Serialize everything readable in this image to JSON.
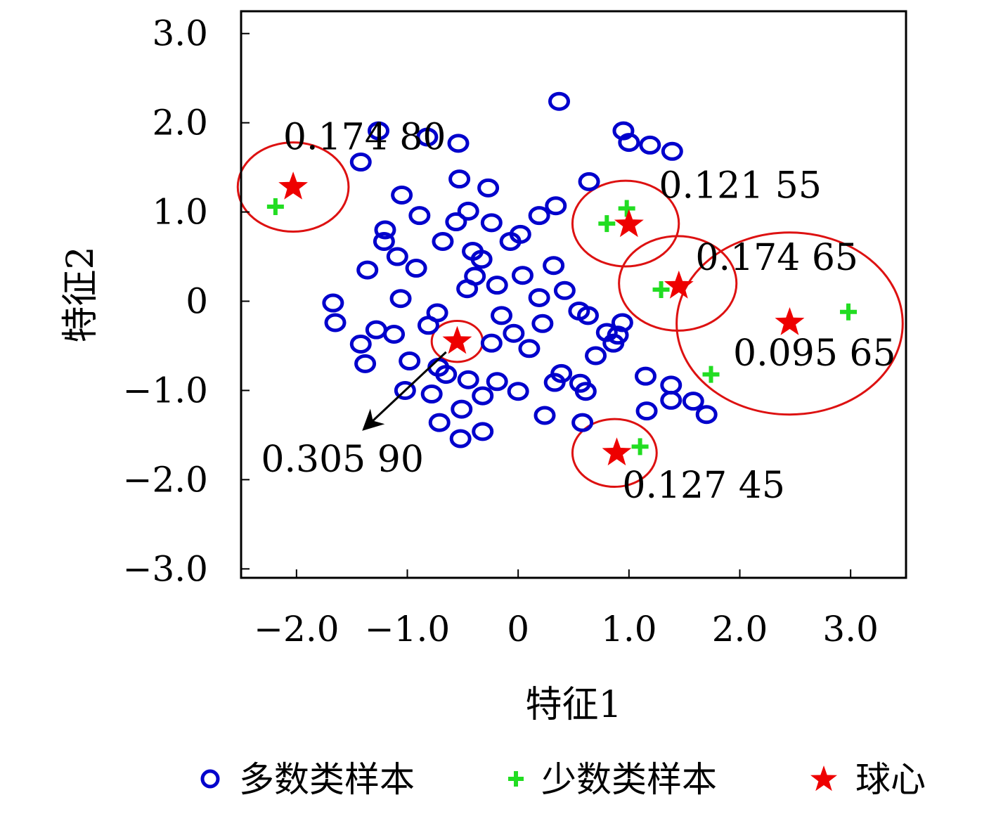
{
  "chart_data": {
    "type": "scatter",
    "xlabel": "特征1",
    "ylabel": "特征2",
    "xlim": [
      -2.5,
      3.5
    ],
    "ylim": [
      -3.1,
      3.25
    ],
    "xticks": [
      {
        "value": -2,
        "label": "−2.0"
      },
      {
        "value": -1,
        "label": "−1.0"
      },
      {
        "value": 0,
        "label": "0"
      },
      {
        "value": 1,
        "label": "1.0"
      },
      {
        "value": 2,
        "label": "2.0"
      },
      {
        "value": 3,
        "label": "3.0"
      }
    ],
    "yticks": [
      {
        "value": 3,
        "label": "3.0"
      },
      {
        "value": 2,
        "label": "2.0"
      },
      {
        "value": 1,
        "label": "1.0"
      },
      {
        "value": 0,
        "label": "0"
      },
      {
        "value": -1,
        "label": "−1.0"
      },
      {
        "value": -2,
        "label": "−2.0"
      },
      {
        "value": -3,
        "label": "−3.0"
      }
    ],
    "grid": false,
    "legend_position": "bottom",
    "colors": {
      "majority": "#0000cc",
      "minority": "#22dd22",
      "center": "#ee0000",
      "circle": "#dd1111"
    },
    "majority": {
      "name": "多数类样本",
      "points": [
        [
          0.37,
          2.24
        ],
        [
          0.95,
          1.91
        ],
        [
          1.0,
          1.78
        ],
        [
          1.19,
          1.75
        ],
        [
          1.39,
          1.68
        ],
        [
          0.64,
          1.34
        ],
        [
          -1.26,
          1.91
        ],
        [
          -0.82,
          1.84
        ],
        [
          -0.54,
          1.77
        ],
        [
          -1.42,
          1.56
        ],
        [
          -0.53,
          1.37
        ],
        [
          -0.27,
          1.27
        ],
        [
          -1.05,
          1.19
        ],
        [
          -0.89,
          0.96
        ],
        [
          -0.45,
          1.01
        ],
        [
          -0.56,
          0.89
        ],
        [
          -0.24,
          0.88
        ],
        [
          0.34,
          1.07
        ],
        [
          0.19,
          0.96
        ],
        [
          0.02,
          0.75
        ],
        [
          -1.2,
          0.8
        ],
        [
          -1.21,
          0.67
        ],
        [
          -0.68,
          0.67
        ],
        [
          -0.07,
          0.67
        ],
        [
          -1.09,
          0.5
        ],
        [
          -0.92,
          0.37
        ],
        [
          -1.36,
          0.35
        ],
        [
          -0.41,
          0.56
        ],
        [
          -0.33,
          0.47
        ],
        [
          -0.39,
          0.28
        ],
        [
          -0.46,
          0.14
        ],
        [
          -0.19,
          0.18
        ],
        [
          0.04,
          0.29
        ],
        [
          0.32,
          0.4
        ],
        [
          0.42,
          0.12
        ],
        [
          0.19,
          0.04
        ],
        [
          -1.06,
          0.03
        ],
        [
          -1.67,
          -0.02
        ],
        [
          -1.65,
          -0.24
        ],
        [
          -1.28,
          -0.32
        ],
        [
          -1.12,
          -0.37
        ],
        [
          -1.42,
          -0.48
        ],
        [
          -1.38,
          -0.7
        ],
        [
          -0.98,
          -0.67
        ],
        [
          -0.73,
          -0.13
        ],
        [
          -0.81,
          -0.27
        ],
        [
          -0.15,
          -0.16
        ],
        [
          0.22,
          -0.25
        ],
        [
          0.55,
          -0.11
        ],
        [
          0.63,
          -0.16
        ],
        [
          -0.24,
          -0.47
        ],
        [
          -0.04,
          -0.36
        ],
        [
          0.1,
          -0.53
        ],
        [
          0.94,
          -0.24
        ],
        [
          0.8,
          -0.35
        ],
        [
          0.9,
          -0.38
        ],
        [
          0.86,
          -0.47
        ],
        [
          0.7,
          -0.61
        ],
        [
          -0.72,
          -0.74
        ],
        [
          -0.65,
          -0.82
        ],
        [
          -1.02,
          -1.0
        ],
        [
          -0.78,
          -1.04
        ],
        [
          -0.45,
          -0.88
        ],
        [
          -0.19,
          -0.9
        ],
        [
          -0.32,
          -1.06
        ],
        [
          0.0,
          -1.01
        ],
        [
          0.33,
          -0.91
        ],
        [
          0.39,
          -0.81
        ],
        [
          0.56,
          -0.92
        ],
        [
          0.61,
          -1.01
        ],
        [
          1.15,
          -0.84
        ],
        [
          1.38,
          -0.94
        ],
        [
          1.38,
          -1.11
        ],
        [
          1.58,
          -1.12
        ],
        [
          1.7,
          -1.27
        ],
        [
          1.16,
          -1.23
        ],
        [
          -0.51,
          -1.21
        ],
        [
          -0.71,
          -1.36
        ],
        [
          -0.52,
          -1.54
        ],
        [
          -0.32,
          -1.46
        ],
        [
          0.24,
          -1.28
        ],
        [
          0.58,
          -1.36
        ]
      ]
    },
    "minority": {
      "name": "少数类样本",
      "points": [
        [
          -2.19,
          1.06
        ],
        [
          0.8,
          0.87
        ],
        [
          0.98,
          1.04
        ],
        [
          1.29,
          0.13
        ],
        [
          2.98,
          -0.12
        ],
        [
          1.74,
          -0.82
        ],
        [
          1.1,
          -1.63
        ]
      ]
    },
    "centers": {
      "name": "球心",
      "points": [
        [
          -2.03,
          1.28
        ],
        [
          1.0,
          0.86
        ],
        [
          1.45,
          0.17
        ],
        [
          2.45,
          -0.24
        ],
        [
          -0.55,
          -0.45
        ],
        [
          0.89,
          -1.7
        ]
      ]
    },
    "spheres": [
      {
        "center": [
          -2.03,
          1.28
        ],
        "radius": 0.5
      },
      {
        "center": [
          0.97,
          0.87
        ],
        "radius": 0.48
      },
      {
        "center": [
          1.44,
          0.2
        ],
        "radius": 0.53
      },
      {
        "center": [
          2.45,
          -0.25
        ],
        "radius": 1.02
      },
      {
        "center": [
          -0.55,
          -0.45
        ],
        "radius": 0.23
      },
      {
        "center": [
          0.87,
          -1.7
        ],
        "radius": 0.38
      }
    ],
    "annotations": [
      {
        "text": "0.174 80",
        "x": -2.12,
        "y": 1.7
      },
      {
        "text": "0.121 55",
        "x": 1.27,
        "y": 1.16
      },
      {
        "text": "0.174 65",
        "x": 1.6,
        "y": 0.35
      },
      {
        "text": "0.095 65",
        "x": 1.94,
        "y": -0.72
      },
      {
        "text": "0.305 90",
        "x": -2.32,
        "y": -1.91
      },
      {
        "text": "0.127 45",
        "x": 0.94,
        "y": -2.2
      }
    ],
    "arrow": {
      "from": [
        -0.65,
        -0.57
      ],
      "to": [
        -1.38,
        -1.42
      ]
    }
  }
}
